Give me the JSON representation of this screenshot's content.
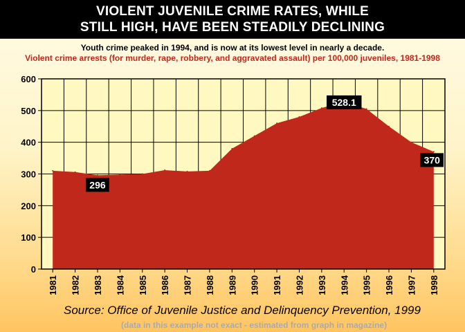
{
  "title_lines": [
    "VIOLENT JUVENILE CRIME RATES, WHILE",
    "STILL HIGH, HAVE BEEN STEADILY DECLINING"
  ],
  "subtitle": "Youth crime peaked in 1994, and is now at its lowest level in nearly a decade.",
  "subtitle2": "Violent crime arrests (for murder, rape, robbery, and aggravated assault) per 100,000 juveniles, 1981-1998",
  "source": "Source: Office of Juvenile Justice and Delinquency Prevention, 1999",
  "note": "(data in this example not exact - estimated from graph in magazine)",
  "colors": {
    "area": "#c0281c",
    "label_bg": "#000000",
    "label_text": "#ffffff"
  },
  "chart_data": {
    "type": "area",
    "x": [
      "1981",
      "1982",
      "1983",
      "1984",
      "1985",
      "1986",
      "1987",
      "1988",
      "1989",
      "1990",
      "1991",
      "1992",
      "1993",
      "1994",
      "1995",
      "1996",
      "1997",
      "1998"
    ],
    "values": [
      310,
      306,
      296,
      298,
      300,
      312,
      308,
      310,
      380,
      420,
      460,
      480,
      508,
      528.1,
      505,
      450,
      400,
      370
    ],
    "ylim": [
      0,
      600
    ],
    "yticks": [
      0,
      100,
      200,
      300,
      400,
      500,
      600
    ],
    "grid": true,
    "annotations": [
      {
        "x": "1983",
        "y": 296,
        "text": "296"
      },
      {
        "x": "1994",
        "y": 528.1,
        "text": "528.1"
      },
      {
        "x": "1998",
        "y": 370,
        "text": "370"
      }
    ]
  }
}
